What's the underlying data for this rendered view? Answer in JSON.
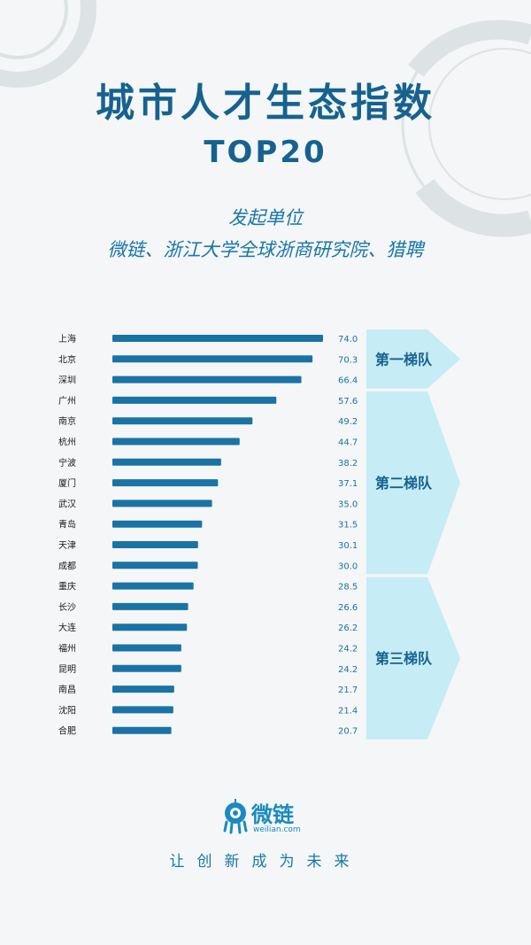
{
  "header": {
    "title": "城市人才生态指数",
    "subtitle": "TOP20",
    "org_label": "发起单位",
    "org_names": "微链、浙江大学全球浙商研究院、猎聘"
  },
  "colors": {
    "bar": "#1a73a5",
    "label": "#1a1a1a",
    "value": "#1a73a5",
    "tier_fill": "#c6ecf6",
    "tier_text": "#16628f",
    "title": "#16628f"
  },
  "chart_data": {
    "type": "bar",
    "orientation": "horizontal",
    "categories": [
      "上海",
      "北京",
      "深圳",
      "广州",
      "南京",
      "杭州",
      "宁波",
      "厦门",
      "武汉",
      "青岛",
      "天津",
      "成都",
      "重庆",
      "长沙",
      "大连",
      "福州",
      "昆明",
      "南昌",
      "沈阳",
      "合肥"
    ],
    "values": [
      74.0,
      70.3,
      66.4,
      57.6,
      49.2,
      44.7,
      38.2,
      37.1,
      35.0,
      31.5,
      30.1,
      30.0,
      28.5,
      26.6,
      26.2,
      24.2,
      24.2,
      21.7,
      21.4,
      20.7
    ],
    "value_labels": [
      "74.0",
      "70.3",
      "66.4",
      "57.6",
      "49.2",
      "44.7",
      "38.2",
      "37.1",
      "35.0",
      "31.5",
      "30.1",
      "30.0",
      "28.5",
      "26.6",
      "26.2",
      "24.2",
      "24.2",
      "21.7",
      "21.4",
      "20.7"
    ],
    "tiers": [
      {
        "label": "第一梯队",
        "start": 0,
        "end": 2
      },
      {
        "label": "第二梯队",
        "start": 3,
        "end": 11
      },
      {
        "label": "第三梯队",
        "start": 12,
        "end": 19
      }
    ]
  },
  "footer": {
    "logo_text": "微链",
    "logo_url": "weilian.com",
    "logo_icon": "robot-mascot-icon",
    "slogan": "让创新成为未来"
  }
}
